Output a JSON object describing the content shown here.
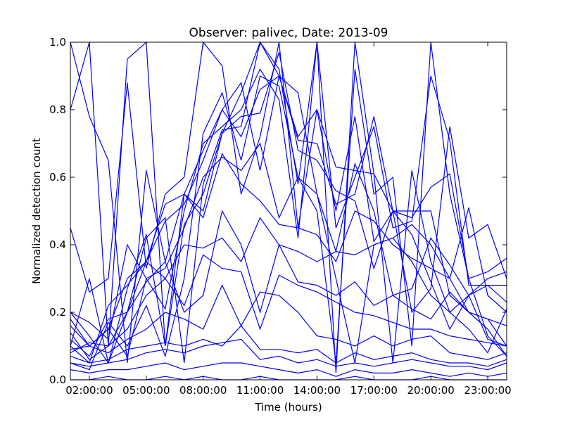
{
  "chart_data": {
    "type": "line",
    "title": "Observer: palivec, Date: 2013-09",
    "xlabel": "Time (hours)",
    "ylabel": "Normalized detection count",
    "x": [
      1,
      2,
      3,
      4,
      5,
      6,
      7,
      8,
      9,
      10,
      11,
      12,
      13,
      14,
      15,
      16,
      17,
      18,
      19,
      20,
      21,
      22,
      23,
      24
    ],
    "xlim": [
      1,
      24
    ],
    "ylim": [
      0,
      1
    ],
    "x_ticks": [
      {
        "value": 2,
        "label": "02:00:00"
      },
      {
        "value": 5,
        "label": "05:00:00"
      },
      {
        "value": 8,
        "label": "08:00:00"
      },
      {
        "value": 11,
        "label": "11:00:00"
      },
      {
        "value": 14,
        "label": "14:00:00"
      },
      {
        "value": 17,
        "label": "17:00:00"
      },
      {
        "value": 20,
        "label": "20:00:00"
      },
      {
        "value": 23,
        "label": "23:00:00"
      }
    ],
    "y_ticks": [
      {
        "value": 0.0,
        "label": "0.0"
      },
      {
        "value": 0.2,
        "label": "0.2"
      },
      {
        "value": 0.4,
        "label": "0.4"
      },
      {
        "value": 0.6,
        "label": "0.6"
      },
      {
        "value": 0.8,
        "label": "0.8"
      },
      {
        "value": 1.0,
        "label": "1.0"
      }
    ],
    "grid": false,
    "line_color": "#0000ff",
    "series": [
      {
        "values": [
          1.0,
          0.78,
          0.65,
          0.05,
          0.62,
          0.35,
          0.55,
          0.5,
          0.73,
          0.85,
          1.0,
          0.9,
          0.72,
          0.8,
          0.63,
          0.62,
          0.61,
          0.5,
          0.5,
          0.5,
          0.25,
          0.2,
          0.18,
          0.1
        ]
      },
      {
        "values": [
          0.1,
          0.3,
          0.05,
          0.27,
          0.43,
          0.1,
          0.55,
          0.68,
          0.8,
          0.88,
          0.62,
          0.9,
          0.85,
          0.55,
          0.3,
          0.05,
          0.4,
          0.42,
          0.46,
          0.4,
          0.3,
          0.2,
          0.15,
          0.07
        ]
      },
      {
        "values": [
          0.8,
          1.0,
          0.1,
          0.95,
          1.0,
          0.1,
          0.46,
          0.55,
          0.73,
          0.78,
          0.79,
          0.97,
          0.68,
          0.65,
          0.56,
          0.53,
          0.33,
          0.5,
          0.43,
          0.29,
          0.15,
          0.25,
          0.12,
          0.1
        ]
      },
      {
        "values": [
          0.45,
          0.26,
          0.3,
          0.88,
          0.33,
          0.55,
          0.6,
          1.0,
          0.93,
          0.55,
          0.72,
          1.0,
          0.45,
          0.8,
          0.5,
          0.78,
          0.41,
          0.5,
          0.2,
          0.27,
          0.75,
          0.42,
          0.46,
          0.3
        ]
      },
      {
        "values": [
          0.2,
          0.13,
          0.05,
          0.2,
          0.42,
          0.48,
          0.05,
          0.58,
          0.74,
          0.75,
          1.0,
          0.92,
          0.58,
          1.0,
          0.02,
          1.0,
          0.61,
          0.05,
          0.62,
          0.35,
          0.2,
          0.15,
          0.08,
          0.21
        ]
      },
      {
        "values": [
          0.05,
          0.03,
          0.17,
          0.1,
          0.22,
          0.07,
          0.3,
          0.73,
          0.85,
          0.65,
          0.9,
          0.87,
          0.6,
          0.5,
          0.05,
          0.92,
          0.55,
          0.6,
          0.1,
          1.0,
          0.55,
          0.3,
          0.13,
          0.07
        ]
      },
      {
        "values": [
          0.16,
          0.1,
          0.15,
          0.07,
          0.3,
          0.21,
          0.5,
          0.7,
          0.75,
          0.8,
          0.92,
          0.83,
          0.42,
          1.0,
          0.45,
          0.6,
          0.75,
          0.45,
          0.47,
          0.9,
          0.71,
          0.28,
          0.28,
          0.28
        ]
      },
      {
        "values": [
          0.12,
          0.07,
          0.18,
          0.2,
          0.35,
          0.47,
          0.52,
          0.65,
          0.8,
          0.72,
          0.86,
          0.9,
          0.71,
          0.7,
          0.52,
          0.55,
          0.78,
          0.5,
          0.48,
          0.57,
          0.61,
          0.3,
          0.32,
          0.36
        ]
      },
      {
        "values": [
          0.2,
          0.17,
          0.12,
          0.4,
          0.3,
          0.33,
          0.45,
          0.6,
          0.66,
          0.62,
          0.7,
          0.48,
          0.6,
          0.55,
          0.38,
          0.64,
          0.5,
          0.25,
          0.27,
          0.42,
          0.34,
          0.25,
          0.3,
          0.32
        ]
      },
      {
        "values": [
          0.18,
          0.1,
          0.15,
          0.3,
          0.35,
          0.52,
          0.55,
          0.48,
          0.67,
          0.58,
          0.53,
          0.46,
          0.45,
          0.43,
          0.35,
          0.5,
          0.47,
          0.4,
          0.36,
          0.33,
          0.3,
          0.51,
          0.25,
          0.2
        ]
      },
      {
        "values": [
          0.1,
          0.05,
          0.22,
          0.28,
          0.35,
          0.3,
          0.4,
          0.39,
          0.42,
          0.35,
          0.48,
          0.4,
          0.38,
          0.35,
          0.38,
          0.37,
          0.4,
          0.42,
          0.35,
          0.25,
          0.2,
          0.25,
          0.28,
          0.23
        ]
      },
      {
        "values": [
          0.08,
          0.11,
          0.1,
          0.2,
          0.29,
          0.35,
          0.2,
          0.25,
          0.5,
          0.4,
          0.2,
          0.4,
          0.29,
          0.28,
          0.25,
          0.29,
          0.22,
          0.25,
          0.21,
          0.18,
          0.26,
          0.2,
          0.18,
          0.16
        ]
      },
      {
        "values": [
          0.14,
          0.06,
          0.1,
          0.15,
          0.25,
          0.3,
          0.22,
          0.37,
          0.33,
          0.32,
          0.15,
          0.31,
          0.28,
          0.26,
          0.23,
          0.2,
          0.19,
          0.17,
          0.15,
          0.15,
          0.13,
          0.12,
          0.11,
          0.1
        ]
      },
      {
        "values": [
          0.09,
          0.1,
          0.08,
          0.12,
          0.15,
          0.2,
          0.18,
          0.15,
          0.28,
          0.16,
          0.26,
          0.25,
          0.2,
          0.13,
          0.12,
          0.1,
          0.13,
          0.1,
          0.12,
          0.13,
          0.08,
          0.07,
          0.06,
          0.08
        ]
      },
      {
        "values": [
          0.07,
          0.05,
          0.06,
          0.09,
          0.1,
          0.11,
          0.1,
          0.12,
          0.1,
          0.16,
          0.09,
          0.09,
          0.08,
          0.09,
          0.05,
          0.08,
          0.06,
          0.07,
          0.08,
          0.06,
          0.05,
          0.05,
          0.04,
          0.06
        ]
      },
      {
        "values": [
          0.05,
          0.04,
          0.05,
          0.06,
          0.08,
          0.09,
          0.08,
          0.1,
          0.11,
          0.12,
          0.06,
          0.07,
          0.05,
          0.06,
          0.04,
          0.05,
          0.04,
          0.05,
          0.06,
          0.05,
          0.04,
          0.04,
          0.03,
          0.05
        ]
      },
      {
        "values": [
          0.03,
          0.02,
          0.03,
          0.03,
          0.04,
          0.05,
          0.03,
          0.04,
          0.05,
          0.05,
          0.04,
          0.03,
          0.02,
          0.03,
          0.01,
          0.03,
          0.02,
          0.02,
          0.03,
          0.02,
          0.01,
          0.02,
          0.01,
          0.02
        ]
      },
      {
        "values": [
          0.0,
          0.0,
          0.01,
          0.0,
          0.0,
          0.01,
          0.0,
          0.01,
          0.0,
          0.0,
          0.01,
          0.0,
          0.0,
          0.0,
          0.0,
          0.01,
          0.0,
          0.0,
          0.0,
          0.01,
          0.0,
          0.0,
          0.0,
          0.0
        ]
      }
    ]
  }
}
